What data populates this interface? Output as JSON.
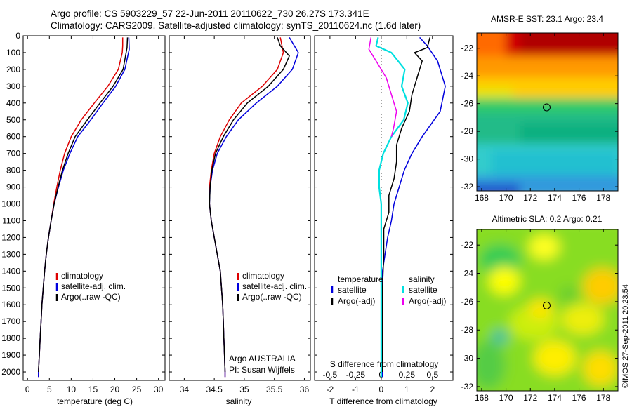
{
  "header": {
    "line1": "Argo profile: CS 5903229_57 22-Jun-2011 20110622_730 26.27S 173.341E",
    "line2": "Climatology: CARS2009. Satellite-adjusted climatology: synTS_20110624.nc (1.6d later)"
  },
  "colors": {
    "climatology": "#dd0000",
    "satellite": "#0000dd",
    "argo": "#000000",
    "argo_salinity_diff": "#ee00ee",
    "satellite_salinity_diff": "#00e0e0"
  },
  "depth_ticks": [
    0,
    100,
    200,
    300,
    400,
    500,
    600,
    700,
    800,
    900,
    1000,
    1100,
    1200,
    1300,
    1400,
    1500,
    1600,
    1700,
    1800,
    1900,
    2000
  ],
  "chart_data": [
    {
      "type": "line",
      "xlabel": "temperature (deg C)",
      "xlim": [
        -1,
        31.5
      ],
      "ylim": [
        0,
        2050
      ],
      "y_reversed": true,
      "x_ticks": [
        0,
        5,
        10,
        15,
        20,
        25,
        30
      ],
      "legend": [
        "climatology",
        "satellite-adj. clim.",
        "Argo(..raw -QC)"
      ],
      "legend_placement": "lower-right",
      "series": [
        {
          "name": "climatology",
          "points": [
            [
              21.8,
              10
            ],
            [
              21.8,
              60
            ],
            [
              21.7,
              100
            ],
            [
              20.8,
              200
            ],
            [
              18.4,
              300
            ],
            [
              15.3,
              400
            ],
            [
              12.3,
              500
            ],
            [
              10,
              600
            ],
            [
              8.5,
              700
            ],
            [
              7.5,
              800
            ],
            [
              6.7,
              900
            ],
            [
              6,
              1000
            ],
            [
              5.4,
              1100
            ],
            [
              4.8,
              1200
            ],
            [
              4.3,
              1300
            ],
            [
              3.9,
              1400
            ],
            [
              3.6,
              1500
            ],
            [
              3.3,
              1600
            ],
            [
              3.1,
              1700
            ],
            [
              2.9,
              1800
            ],
            [
              2.7,
              1900
            ],
            [
              2.5,
              2000
            ],
            [
              2.5,
              2030
            ]
          ]
        },
        {
          "name": "satellite-adj. clim.",
          "points": [
            [
              23.2,
              10
            ],
            [
              23.3,
              80
            ],
            [
              22.3,
              200
            ],
            [
              20.2,
              300
            ],
            [
              17.3,
              400
            ],
            [
              14.5,
              500
            ],
            [
              11.5,
              600
            ],
            [
              9.7,
              700
            ],
            [
              8.2,
              800
            ],
            [
              7.1,
              900
            ],
            [
              6.1,
              1000
            ],
            [
              5.4,
              1100
            ],
            [
              4.8,
              1200
            ],
            [
              4.3,
              1300
            ],
            [
              3.9,
              1400
            ],
            [
              3.6,
              1500
            ],
            [
              3.3,
              1600
            ],
            [
              3.1,
              1700
            ],
            [
              2.9,
              1800
            ],
            [
              2.7,
              1900
            ],
            [
              2.5,
              2000
            ],
            [
              2.5,
              2030
            ]
          ]
        },
        {
          "name": "Argo(..raw -QC)",
          "points": [
            [
              22.9,
              10
            ],
            [
              22.8,
              70
            ],
            [
              21.9,
              200
            ],
            [
              19.6,
              300
            ],
            [
              16.6,
              400
            ],
            [
              13.7,
              500
            ],
            [
              10.9,
              600
            ],
            [
              9.3,
              700
            ],
            [
              8,
              800
            ],
            [
              7,
              900
            ],
            [
              6.1,
              1000
            ],
            [
              5.4,
              1100
            ],
            [
              4.8,
              1200
            ],
            [
              4.3,
              1300
            ],
            [
              3.9,
              1400
            ],
            [
              3.6,
              1500
            ],
            [
              3.3,
              1600
            ],
            [
              3.1,
              1700
            ],
            [
              2.9,
              1800
            ],
            [
              2.7,
              1900
            ],
            [
              2.5,
              2000
            ]
          ]
        }
      ]
    },
    {
      "type": "line",
      "xlabel": "salinity",
      "xlim": [
        33.75,
        36.1
      ],
      "ylim": [
        0,
        2050
      ],
      "y_reversed": true,
      "x_ticks": [
        34,
        34.5,
        35,
        35.5,
        36
      ],
      "legend": [
        "climatology",
        "satellite-adj. clim.",
        "Argo(..raw -QC)"
      ],
      "legend_placement": "lower-right",
      "annotation": [
        "Argo AUSTRALIA",
        "PI: Susan Wijffels"
      ],
      "series": [
        {
          "name": "climatology",
          "points": [
            [
              35.6,
              10
            ],
            [
              35.65,
              100
            ],
            [
              35.55,
              200
            ],
            [
              35.3,
              300
            ],
            [
              34.95,
              400
            ],
            [
              34.75,
              500
            ],
            [
              34.6,
              600
            ],
            [
              34.5,
              700
            ],
            [
              34.45,
              800
            ],
            [
              34.42,
              900
            ],
            [
              34.42,
              1000
            ],
            [
              34.45,
              1100
            ],
            [
              34.5,
              1200
            ],
            [
              34.55,
              1300
            ],
            [
              34.6,
              1400
            ],
            [
              34.62,
              1500
            ],
            [
              34.64,
              1600
            ],
            [
              34.65,
              1700
            ],
            [
              34.66,
              1800
            ],
            [
              34.67,
              1900
            ],
            [
              34.68,
              2000
            ],
            [
              34.68,
              2030
            ]
          ]
        },
        {
          "name": "satellite-adj. clim.",
          "points": [
            [
              35.75,
              10
            ],
            [
              35.9,
              100
            ],
            [
              35.8,
              200
            ],
            [
              35.55,
              300
            ],
            [
              35.2,
              400
            ],
            [
              34.9,
              500
            ],
            [
              34.7,
              600
            ],
            [
              34.55,
              700
            ],
            [
              34.47,
              800
            ],
            [
              34.43,
              900
            ],
            [
              34.42,
              1000
            ],
            [
              34.45,
              1100
            ],
            [
              34.5,
              1200
            ],
            [
              34.55,
              1300
            ],
            [
              34.6,
              1400
            ],
            [
              34.62,
              1500
            ],
            [
              34.64,
              1600
            ],
            [
              34.65,
              1700
            ],
            [
              34.66,
              1800
            ],
            [
              34.67,
              1900
            ],
            [
              34.68,
              2000
            ],
            [
              34.68,
              2030
            ]
          ]
        },
        {
          "name": "Argo(..raw -QC)",
          "points": [
            [
              35.55,
              10
            ],
            [
              35.6,
              60
            ],
            [
              35.75,
              120
            ],
            [
              35.65,
              200
            ],
            [
              35.4,
              300
            ],
            [
              35.05,
              400
            ],
            [
              34.82,
              500
            ],
            [
              34.65,
              600
            ],
            [
              34.52,
              700
            ],
            [
              34.46,
              800
            ],
            [
              34.43,
              900
            ],
            [
              34.42,
              1000
            ],
            [
              34.45,
              1100
            ],
            [
              34.5,
              1200
            ],
            [
              34.55,
              1300
            ],
            [
              34.6,
              1400
            ],
            [
              34.62,
              1500
            ],
            [
              34.64,
              1600
            ],
            [
              34.65,
              1700
            ],
            [
              34.66,
              1800
            ],
            [
              34.67,
              1900
            ],
            [
              34.68,
              2000
            ]
          ]
        }
      ]
    },
    {
      "type": "line",
      "xlabel": "T difference from climatology",
      "x2label": "S difference from climatology",
      "xlim": [
        -2.6,
        2.8
      ],
      "x2lim": [
        -0.65,
        0.7
      ],
      "ylim": [
        0,
        2050
      ],
      "y_reversed": true,
      "x_ticks": [
        -2,
        -1,
        0,
        1,
        2
      ],
      "x2_ticks": [
        -0.5,
        -0.25,
        0,
        0.25,
        0.5
      ],
      "x2_tick_labels": [
        "-0.5",
        "-0.25",
        "0",
        "0.25",
        "0.5"
      ],
      "legend": {
        "temperature": [
          "satellite",
          "Argo(-adj)"
        ],
        "salinity": [
          "satellite",
          "Argo(-adj)"
        ]
      },
      "series": [
        {
          "name": "satellite",
          "group": "temperature",
          "points": [
            [
              1.5,
              10
            ],
            [
              1.8,
              60
            ],
            [
              2.2,
              150
            ],
            [
              2.5,
              300
            ],
            [
              2.3,
              450
            ],
            [
              1.6,
              600
            ],
            [
              1.2,
              700
            ],
            [
              0.9,
              800
            ],
            [
              0.7,
              900
            ],
            [
              0.5,
              1000
            ],
            [
              0.4,
              1100
            ],
            [
              0.25,
              1200
            ],
            [
              0.15,
              1300
            ],
            [
              0.05,
              1400
            ],
            [
              0.05,
              1600
            ],
            [
              0.05,
              1800
            ],
            [
              0.05,
              2000
            ],
            [
              0.05,
              2030
            ]
          ]
        },
        {
          "name": "Argo(-adj)",
          "group": "temperature",
          "points": [
            [
              1.9,
              10
            ],
            [
              1.8,
              70
            ],
            [
              1.3,
              100
            ],
            [
              1.6,
              150
            ],
            [
              1.4,
              250
            ],
            [
              1.2,
              350
            ],
            [
              1.1,
              450
            ],
            [
              0.8,
              550
            ],
            [
              0.6,
              650
            ],
            [
              0.6,
              750
            ],
            [
              0.5,
              850
            ],
            [
              0.3,
              950
            ],
            [
              0.3,
              1050
            ],
            [
              0.1,
              1150
            ],
            [
              0.1,
              1300
            ],
            [
              0.05,
              1500
            ],
            [
              0.05,
              1700
            ],
            [
              0.05,
              1900
            ],
            [
              0.05,
              2000
            ]
          ]
        },
        {
          "name": "satellite",
          "group": "salinity",
          "points": [
            [
              -0.03,
              10
            ],
            [
              -0.05,
              60
            ],
            [
              0.1,
              100
            ],
            [
              0.23,
              200
            ],
            [
              0.2,
              300
            ],
            [
              0.26,
              400
            ],
            [
              0.22,
              500
            ],
            [
              0.1,
              600
            ],
            [
              0.02,
              700
            ],
            [
              -0.02,
              800
            ],
            [
              -0.02,
              900
            ],
            [
              0,
              1000
            ],
            [
              0,
              1100
            ],
            [
              0,
              1200
            ],
            [
              0,
              1300
            ],
            [
              0,
              1400
            ],
            [
              0,
              1600
            ],
            [
              0,
              1800
            ],
            [
              0,
              2000
            ],
            [
              0,
              2030
            ]
          ]
        },
        {
          "name": "Argo(-adj)",
          "group": "salinity",
          "points": [
            [
              -0.1,
              10
            ],
            [
              -0.12,
              80
            ],
            [
              -0.05,
              150
            ],
            [
              0.05,
              250
            ],
            [
              0.1,
              350
            ],
            [
              0.15,
              450
            ],
            [
              0.12,
              550
            ],
            [
              0.1,
              600
            ]
          ]
        }
      ]
    },
    {
      "type": "heatmap",
      "title": "AMSR-E SST: 23.1 Argo: 23.4",
      "x_ticks": [
        168,
        170,
        172,
        174,
        176,
        178
      ],
      "y_ticks": [
        -22,
        -24,
        -26,
        -28,
        -30,
        -32
      ],
      "xlim": [
        167.6,
        179.2
      ],
      "ylim": [
        -32.3,
        -20.9
      ],
      "marker": {
        "lon": 173.341,
        "lat": -26.27
      }
    },
    {
      "type": "heatmap",
      "title": "Altimetric SLA: 0.2 Argo: 0.21",
      "x_ticks": [
        168,
        170,
        172,
        174,
        176,
        178
      ],
      "y_ticks": [
        -22,
        -24,
        -26,
        -28,
        -30,
        -32
      ],
      "xlim": [
        167.6,
        179.2
      ],
      "ylim": [
        -32.3,
        -20.9
      ],
      "marker": {
        "lon": 173.341,
        "lat": -26.27
      }
    }
  ],
  "footer": {
    "stamp": "©IMOS 27-Sep-2011 20:23:54"
  }
}
